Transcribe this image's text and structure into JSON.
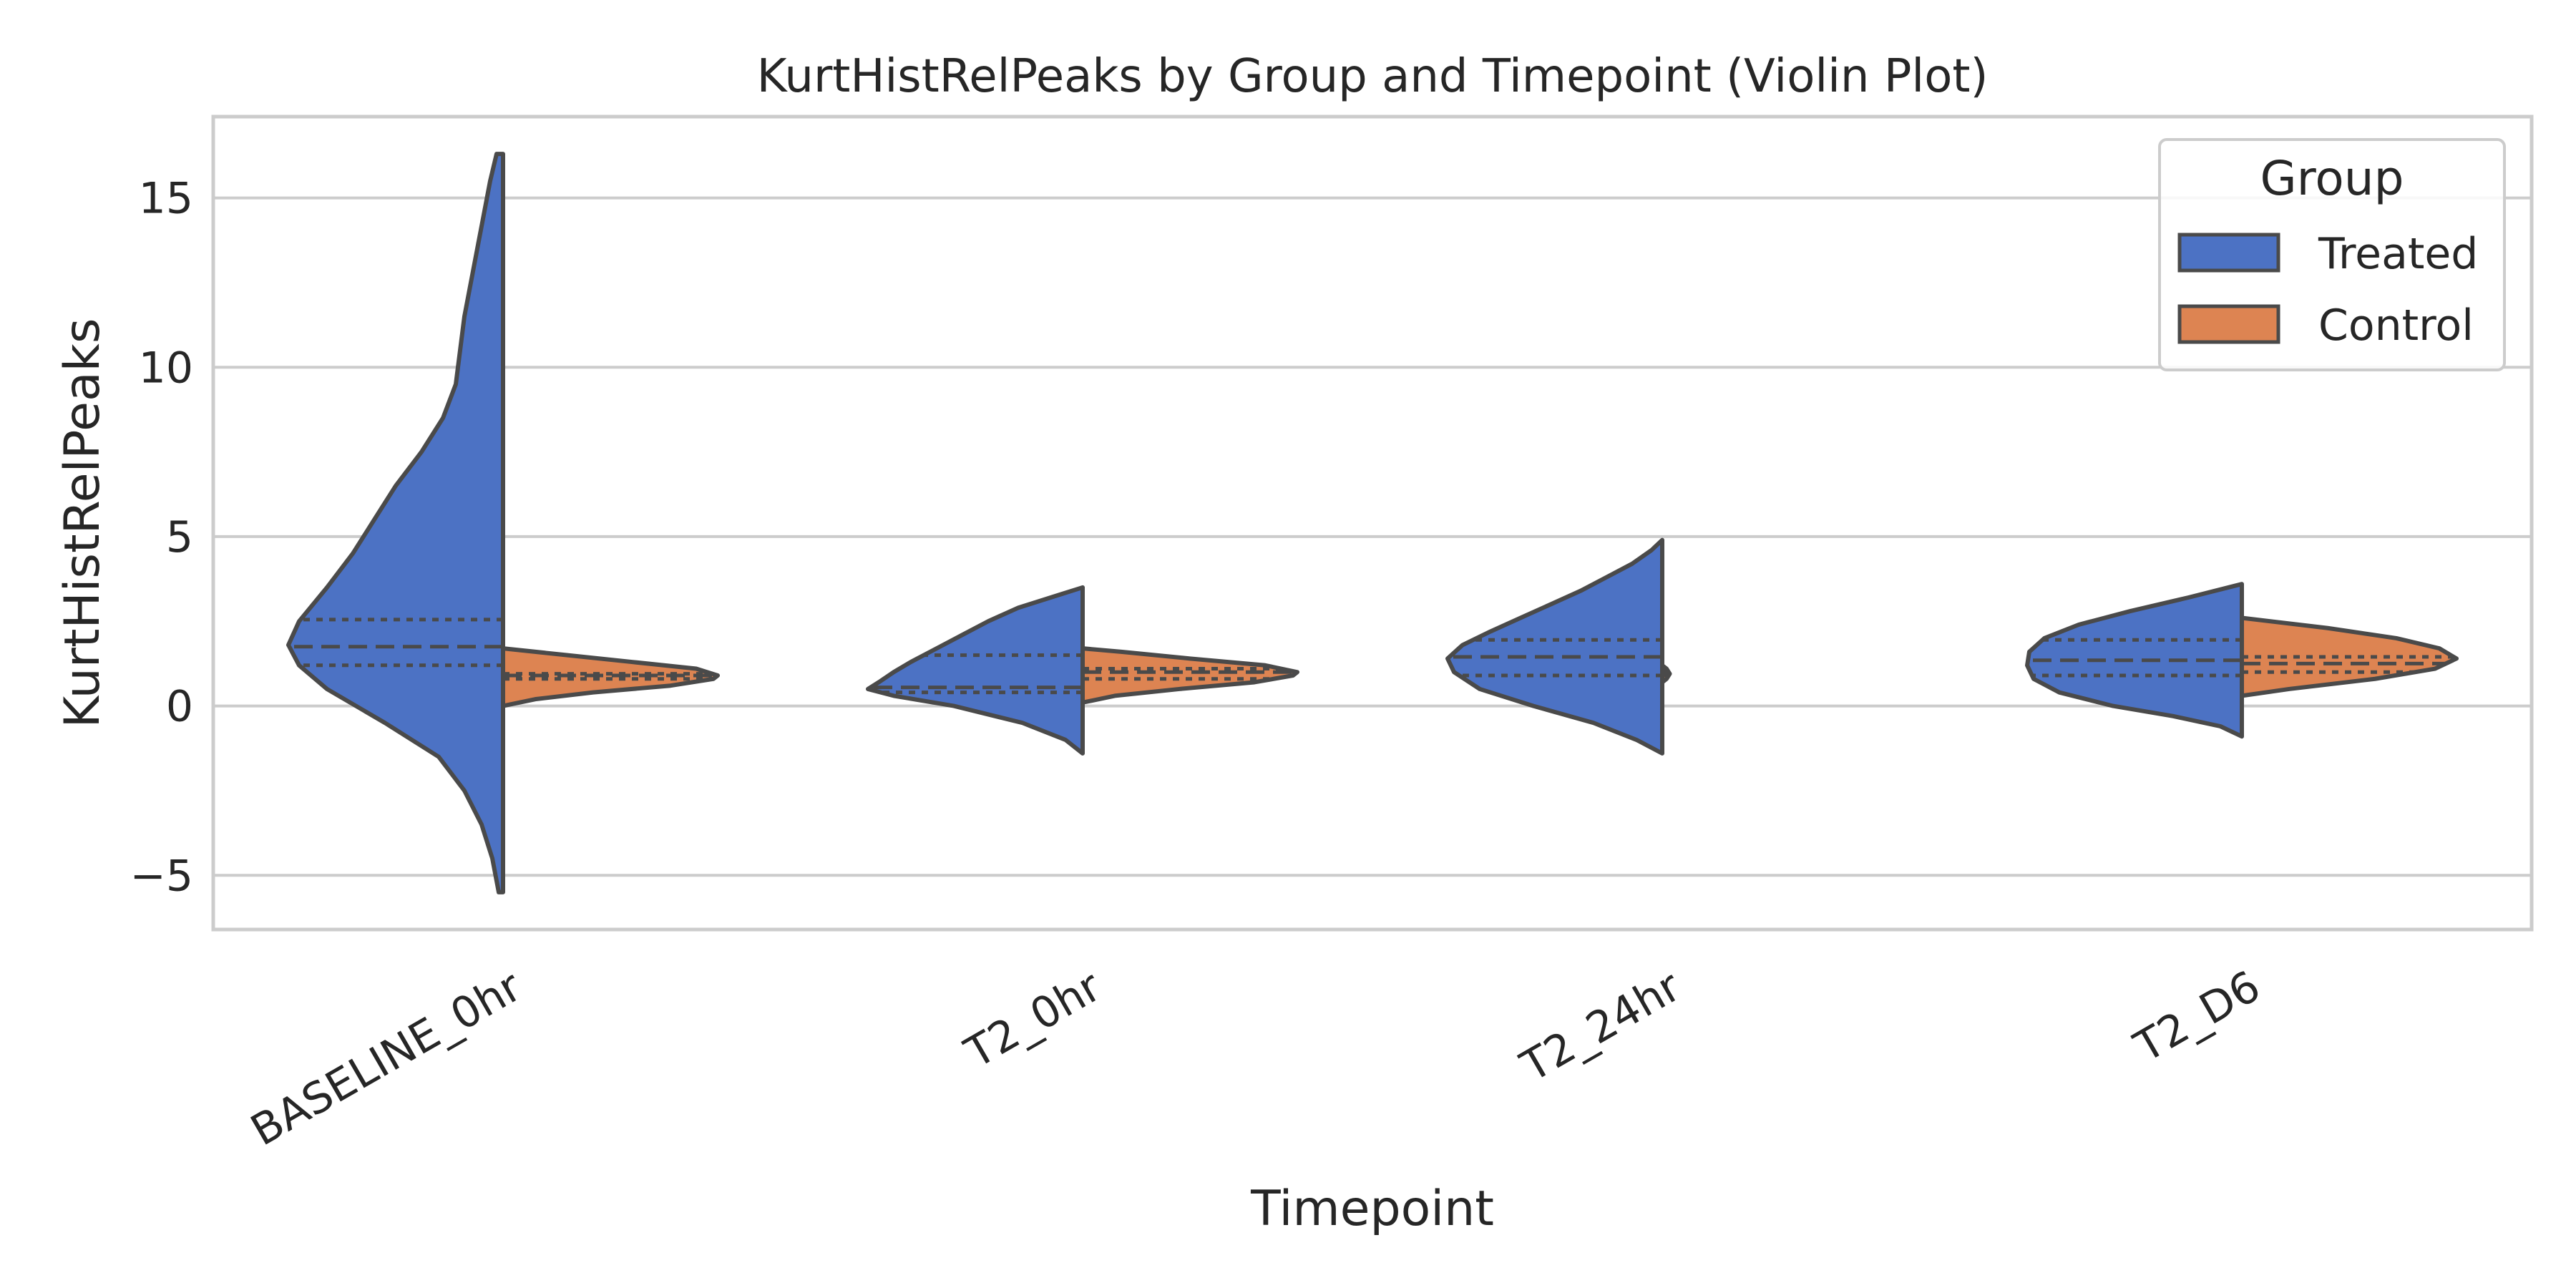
{
  "chart_data": {
    "type": "violin",
    "title": "KurtHistRelPeaks by Group and Timepoint (Violin Plot)",
    "xlabel": "Timepoint",
    "ylabel": "KurtHistRelPeaks",
    "categories": [
      "BASELINE_0hr",
      "T2_0hr",
      "T2_24hr",
      "T2_D6"
    ],
    "ylim": [
      -6.6,
      17.4
    ],
    "yticks": [
      -5,
      0,
      5,
      10,
      15
    ],
    "ytick_labels": [
      "−5",
      "0",
      "5",
      "10",
      "15"
    ],
    "grid": "horizontal",
    "split": true,
    "inner": "quartile",
    "legend": {
      "title": "Group",
      "placement": "top-right",
      "entries": [
        {
          "name": "Treated",
          "color": "#4c72c4"
        },
        {
          "name": "Control",
          "color": "#dd8452"
        }
      ]
    },
    "series": [
      {
        "name": "Treated",
        "color": "#4c72c4",
        "side": "left",
        "violins": [
          {
            "min": -5.5,
            "max": 16.3,
            "q1": 1.2,
            "median": 1.75,
            "q3": 2.55,
            "profile": [
              [
                -5.5,
                0.02
              ],
              [
                -4.5,
                0.05
              ],
              [
                -3.5,
                0.1
              ],
              [
                -2.5,
                0.18
              ],
              [
                -1.5,
                0.3
              ],
              [
                -0.5,
                0.55
              ],
              [
                0.5,
                0.82
              ],
              [
                1.2,
                0.95
              ],
              [
                1.8,
                1.0
              ],
              [
                2.5,
                0.95
              ],
              [
                3.5,
                0.82
              ],
              [
                4.5,
                0.7
              ],
              [
                5.5,
                0.6
              ],
              [
                6.5,
                0.5
              ],
              [
                7.5,
                0.38
              ],
              [
                8.5,
                0.28
              ],
              [
                9.5,
                0.22
              ],
              [
                10.5,
                0.2
              ],
              [
                11.5,
                0.18
              ],
              [
                12.5,
                0.15
              ],
              [
                13.5,
                0.12
              ],
              [
                14.5,
                0.09
              ],
              [
                15.5,
                0.06
              ],
              [
                16.3,
                0.03
              ]
            ]
          },
          {
            "min": -1.4,
            "max": 3.5,
            "q1": 0.4,
            "median": 0.55,
            "q3": 1.5,
            "profile": [
              [
                -1.4,
                0.0
              ],
              [
                -1.0,
                0.08
              ],
              [
                -0.5,
                0.28
              ],
              [
                0.0,
                0.6
              ],
              [
                0.3,
                0.88
              ],
              [
                0.5,
                1.0
              ],
              [
                0.7,
                0.95
              ],
              [
                1.0,
                0.88
              ],
              [
                1.3,
                0.8
              ],
              [
                1.7,
                0.68
              ],
              [
                2.1,
                0.56
              ],
              [
                2.5,
                0.44
              ],
              [
                2.9,
                0.3
              ],
              [
                3.3,
                0.1
              ],
              [
                3.5,
                0.0
              ]
            ]
          },
          {
            "min": -1.4,
            "max": 4.9,
            "q1": 0.9,
            "median": 1.45,
            "q3": 1.95,
            "profile": [
              [
                -1.4,
                0.0
              ],
              [
                -1.0,
                0.12
              ],
              [
                -0.5,
                0.32
              ],
              [
                0.0,
                0.6
              ],
              [
                0.5,
                0.85
              ],
              [
                1.0,
                0.97
              ],
              [
                1.4,
                1.0
              ],
              [
                1.8,
                0.93
              ],
              [
                2.2,
                0.8
              ],
              [
                2.6,
                0.66
              ],
              [
                3.0,
                0.52
              ],
              [
                3.4,
                0.38
              ],
              [
                3.8,
                0.26
              ],
              [
                4.2,
                0.14
              ],
              [
                4.6,
                0.05
              ],
              [
                4.9,
                0.0
              ]
            ]
          },
          {
            "min": -0.9,
            "max": 3.6,
            "q1": 0.9,
            "median": 1.35,
            "q3": 1.95,
            "profile": [
              [
                -0.9,
                0.0
              ],
              [
                -0.6,
                0.1
              ],
              [
                -0.3,
                0.32
              ],
              [
                0.0,
                0.6
              ],
              [
                0.4,
                0.85
              ],
              [
                0.8,
                0.97
              ],
              [
                1.2,
                1.0
              ],
              [
                1.6,
                0.99
              ],
              [
                2.0,
                0.92
              ],
              [
                2.4,
                0.76
              ],
              [
                2.8,
                0.52
              ],
              [
                3.2,
                0.25
              ],
              [
                3.6,
                0.0
              ]
            ]
          }
        ]
      },
      {
        "name": "Control",
        "color": "#dd8452",
        "side": "right",
        "violins": [
          {
            "min": 0.0,
            "max": 1.7,
            "q1": 0.8,
            "median": 0.9,
            "q3": 0.95,
            "profile": [
              [
                0.0,
                0.0
              ],
              [
                0.2,
                0.15
              ],
              [
                0.4,
                0.42
              ],
              [
                0.6,
                0.78
              ],
              [
                0.8,
                0.98
              ],
              [
                0.9,
                1.0
              ],
              [
                1.1,
                0.9
              ],
              [
                1.3,
                0.6
              ],
              [
                1.5,
                0.3
              ],
              [
                1.7,
                0.0
              ]
            ]
          },
          {
            "min": 0.1,
            "max": 1.7,
            "q1": 0.8,
            "median": 1.0,
            "q3": 1.1,
            "profile": [
              [
                0.1,
                0.0
              ],
              [
                0.3,
                0.15
              ],
              [
                0.5,
                0.45
              ],
              [
                0.7,
                0.8
              ],
              [
                0.9,
                0.98
              ],
              [
                1.0,
                1.0
              ],
              [
                1.2,
                0.85
              ],
              [
                1.4,
                0.5
              ],
              [
                1.6,
                0.18
              ],
              [
                1.7,
                0.0
              ]
            ]
          },
          {
            "min": 0.7,
            "max": 1.2,
            "q1": 0.9,
            "median": 0.97,
            "q3": 1.02,
            "profile": [
              [
                0.7,
                0.0
              ],
              [
                0.8,
                0.02
              ],
              [
                0.9,
                0.03
              ],
              [
                0.95,
                0.035
              ],
              [
                1.0,
                0.03
              ],
              [
                1.1,
                0.02
              ],
              [
                1.2,
                0.0
              ]
            ]
          },
          {
            "min": 0.3,
            "max": 2.6,
            "q1": 1.0,
            "median": 1.25,
            "q3": 1.45,
            "profile": [
              [
                0.3,
                0.0
              ],
              [
                0.5,
                0.22
              ],
              [
                0.8,
                0.62
              ],
              [
                1.1,
                0.9
              ],
              [
                1.4,
                1.0
              ],
              [
                1.7,
                0.92
              ],
              [
                2.0,
                0.72
              ],
              [
                2.3,
                0.4
              ],
              [
                2.6,
                0.0
              ]
            ]
          }
        ]
      }
    ]
  }
}
